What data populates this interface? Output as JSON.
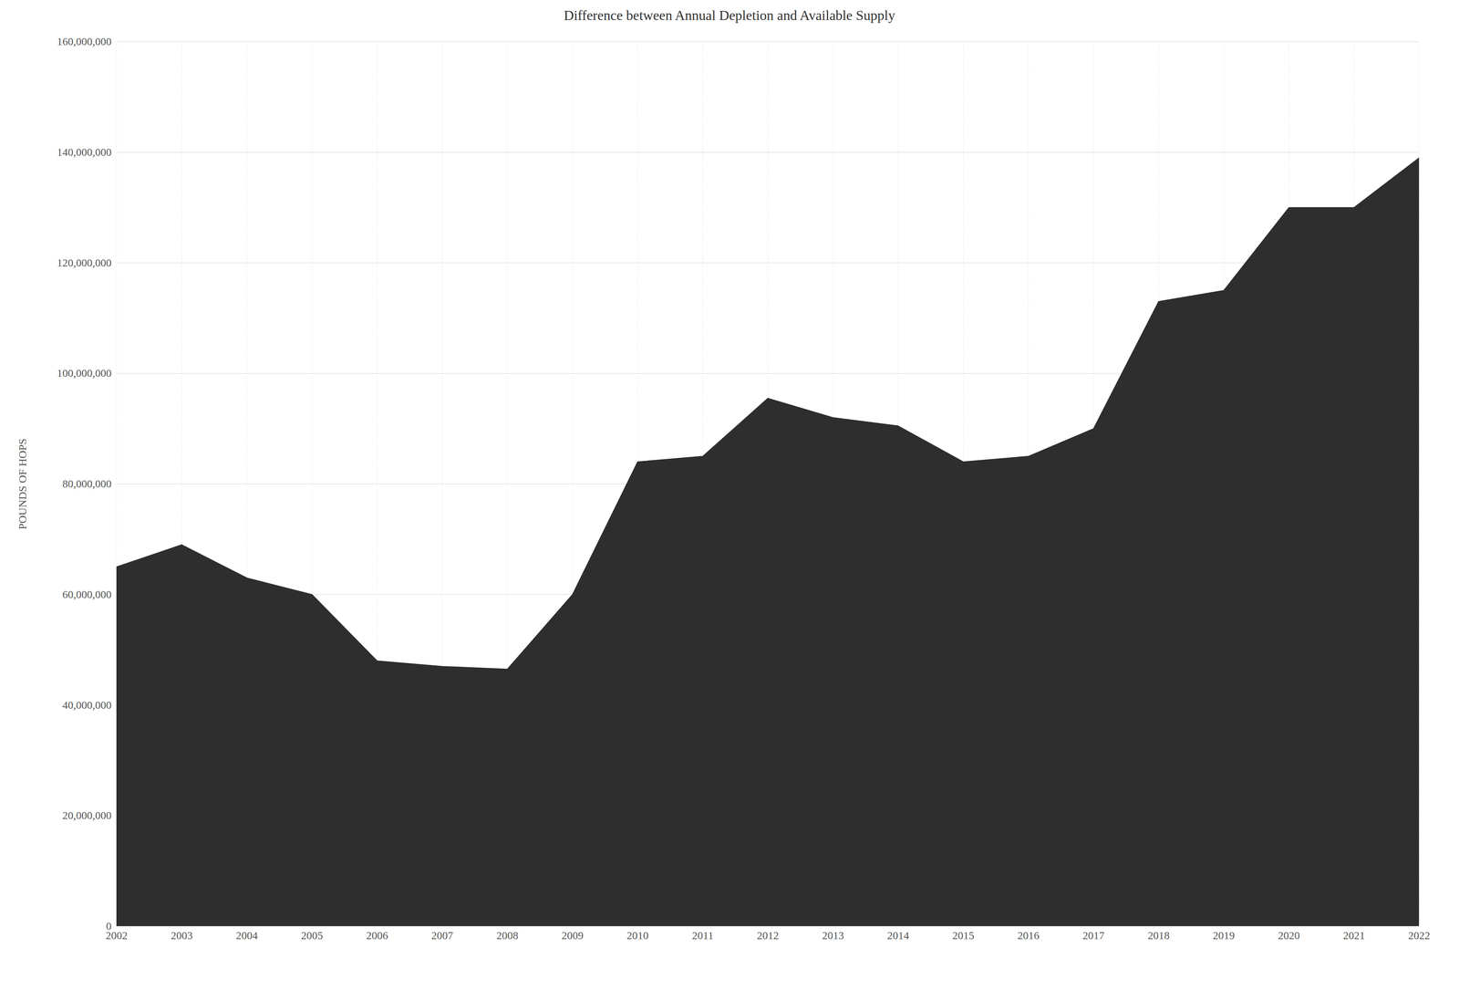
{
  "chart_data": {
    "type": "area",
    "title": "Difference between Annual Depletion and Available Supply",
    "ylabel": "POUNDS OF HOPS",
    "x": [
      2002,
      2003,
      2004,
      2005,
      2006,
      2007,
      2008,
      2009,
      2010,
      2011,
      2012,
      2013,
      2014,
      2015,
      2016,
      2017,
      2018,
      2019,
      2020,
      2021,
      2022
    ],
    "values": [
      65000000,
      69000000,
      63000000,
      60000000,
      48000000,
      47000000,
      46500000,
      60000000,
      84000000,
      85000000,
      95500000,
      92000000,
      90500000,
      84000000,
      85000000,
      90000000,
      113000000,
      115000000,
      130000000,
      130000000,
      139000000
    ],
    "color": "#2e2e2e",
    "xlim": [
      2002,
      2022
    ],
    "xticks": [
      2002,
      2003,
      2004,
      2005,
      2006,
      2007,
      2008,
      2009,
      2010,
      2011,
      2012,
      2013,
      2014,
      2015,
      2016,
      2017,
      2018,
      2019,
      2020,
      2021,
      2022
    ],
    "ylim": [
      0,
      160000000
    ],
    "yticks": [
      0,
      {
        "value": 20000000,
        "label": "20,000,000"
      },
      {
        "value": 40000000,
        "label": "40,000,000"
      },
      {
        "value": 60000000,
        "label": "60,000,000"
      },
      {
        "value": 80000000,
        "label": "80,000,000"
      },
      {
        "value": 100000000,
        "label": "100,000,000"
      },
      {
        "value": 120000000,
        "label": "120,000,000"
      },
      {
        "value": 140000000,
        "label": "140,000,000"
      },
      {
        "value": 160000000,
        "label": "160,000,000"
      }
    ],
    "grid": true
  }
}
